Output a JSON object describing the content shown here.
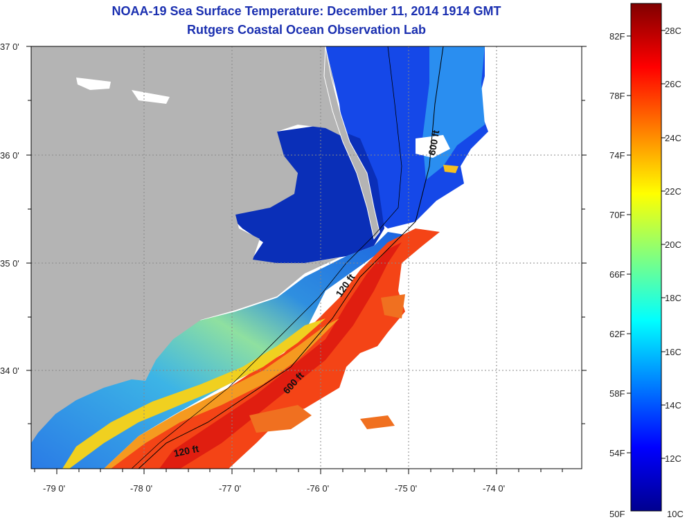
{
  "title": "NOAA-19 Sea Surface Temperature:  December 11, 2014 1914 GMT",
  "subtitle": "Rutgers Coastal Ocean Observation Lab",
  "map": {
    "lat_ticks": [
      "37 0'",
      "36 0'",
      "35 0'",
      "34 0'"
    ],
    "lon_ticks": [
      "-79 0'",
      "-78 0'",
      "-77 0'",
      "-76 0'",
      "-75 0'",
      "-74 0'"
    ],
    "contour_labels": [
      "600 ft",
      "120 ft",
      "600 ft",
      "120 ft"
    ]
  },
  "colorbar": {
    "fahrenheit_labels": [
      "82F",
      "78F",
      "74F",
      "70F",
      "66F",
      "62F",
      "58F",
      "54F",
      "50F"
    ],
    "celsius_labels": [
      "28C",
      "26C",
      "24C",
      "22C",
      "20C",
      "18C",
      "16C",
      "14C",
      "12C",
      "10C"
    ],
    "min_label_f": "50F",
    "min_label_c": "10C"
  },
  "colors": {
    "land": "#b4b4b4",
    "title": "#1a2fb0",
    "jet_low": "#00008f",
    "jet_high": "#800000"
  }
}
